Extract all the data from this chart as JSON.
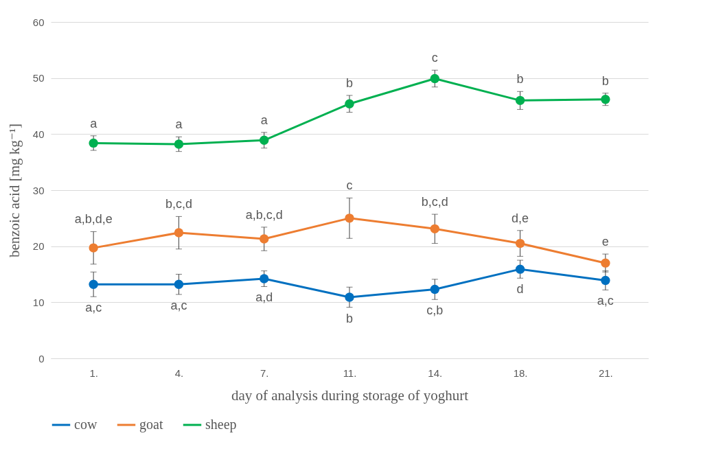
{
  "chart_data": {
    "type": "line",
    "xlabel": "day of analysis during storage of yoghurt",
    "ylabel": "benzoic acid [mg kg⁻¹]",
    "categories": [
      "1.",
      "4.",
      "7.",
      "11.",
      "14.",
      "18.",
      "21."
    ],
    "series": [
      {
        "name": "cow",
        "color": "#0070c0",
        "values": [
          13.2,
          13.2,
          14.2,
          10.9,
          12.3,
          15.9,
          13.9
        ],
        "errors": [
          2.2,
          1.8,
          1.4,
          1.8,
          1.8,
          1.6,
          1.7
        ]
      },
      {
        "name": "goat",
        "color": "#ed7d31",
        "values": [
          19.7,
          22.4,
          21.3,
          25.0,
          23.1,
          20.5,
          17.0
        ],
        "errors": [
          2.9,
          2.9,
          2.1,
          3.6,
          2.6,
          2.3,
          1.6
        ]
      },
      {
        "name": "sheep",
        "color": "#00b050",
        "values": [
          38.4,
          38.2,
          38.9,
          45.4,
          49.9,
          46.0,
          46.2
        ],
        "errors": [
          1.3,
          1.3,
          1.4,
          1.5,
          1.5,
          1.6,
          1.1
        ]
      }
    ],
    "ylim": [
      0,
      60
    ],
    "yticks": [
      0,
      10,
      20,
      30,
      40,
      50,
      60
    ],
    "grid": "y",
    "legend": "bottom",
    "marker": "circle",
    "line_style": "solid",
    "annotations": [
      {
        "text": "a",
        "x": "1.",
        "y": 38.4
      },
      {
        "text": "a",
        "x": "4.",
        "y": 38.2
      },
      {
        "text": "a",
        "x": "7.",
        "y": 38.9
      },
      {
        "text": "b",
        "x": "11.",
        "y": 45.4
      },
      {
        "text": "c",
        "x": "14.",
        "y": 49.9
      },
      {
        "text": "b",
        "x": "18.",
        "y": 46.0
      },
      {
        "text": "b",
        "x": "21.",
        "y": 46.2
      },
      {
        "text": "a,b,d,e",
        "x": "1.",
        "y": 19.7
      },
      {
        "text": "b,c,d",
        "x": "4.",
        "y": 22.4
      },
      {
        "text": "a,b,c,d",
        "x": "7.",
        "y": 21.3
      },
      {
        "text": "c",
        "x": "11.",
        "y": 25.0
      },
      {
        "text": "b,c,d",
        "x": "14.",
        "y": 23.1
      },
      {
        "text": "d,e",
        "x": "18.",
        "y": 20.5
      },
      {
        "text": "e",
        "x": "21.",
        "y": 17.0
      },
      {
        "text": "a,c",
        "x": "1.",
        "y": 13.2
      },
      {
        "text": "a,c",
        "x": "4.",
        "y": 13.2
      },
      {
        "text": "a,d",
        "x": "7.",
        "y": 14.2
      },
      {
        "text": "b",
        "x": "11.",
        "y": 10.9
      },
      {
        "text": "c,b",
        "x": "14.",
        "y": 12.3
      },
      {
        "text": "d",
        "x": "18.",
        "y": 15.9
      },
      {
        "text": "a,c",
        "x": "21.",
        "y": 13.9
      }
    ]
  }
}
